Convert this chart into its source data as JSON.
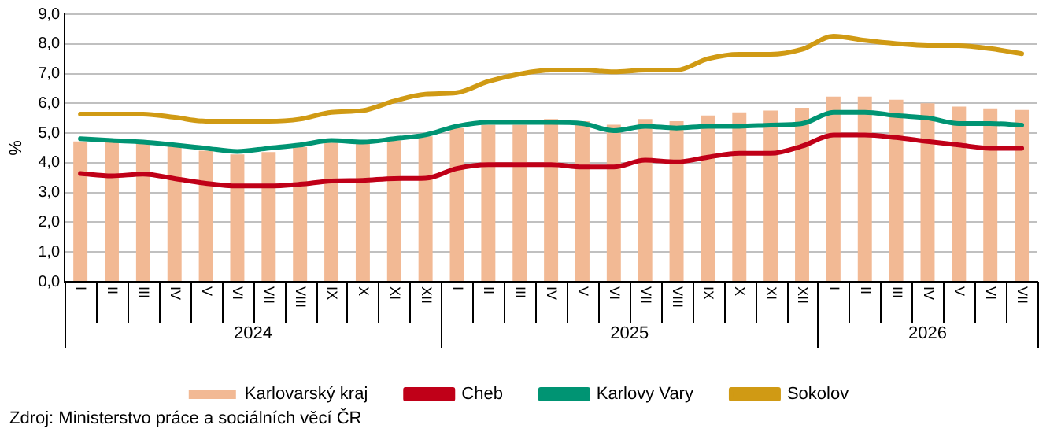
{
  "chart_data": {
    "type": "bar",
    "ylabel": "%",
    "categories": [
      "I",
      "II",
      "III",
      "IV",
      "V",
      "VI",
      "VII",
      "VIII",
      "IX",
      "X",
      "XI",
      "XII",
      "I",
      "II",
      "III",
      "IV",
      "V",
      "VI",
      "VII",
      "VIII",
      "IX",
      "X",
      "XI",
      "XII",
      "I",
      "II",
      "III",
      "IV",
      "V",
      "VI",
      "VII"
    ],
    "series": [
      {
        "name": "Karlovarský kraj",
        "color": "#f2b994",
        "values": [
          4.72,
          4.7,
          4.66,
          4.56,
          4.41,
          4.28,
          4.36,
          4.53,
          4.68,
          4.64,
          4.75,
          4.89,
          5.17,
          5.28,
          5.28,
          5.47,
          5.4,
          5.28,
          5.47,
          5.4,
          5.59,
          5.7,
          5.76,
          5.85,
          6.23,
          6.23,
          6.12,
          6.0,
          5.89,
          5.83,
          5.78
        ]
      },
      {
        "name": "Cheb",
        "type": "line",
        "color": "#c00018",
        "values": [
          3.64,
          3.56,
          3.62,
          3.47,
          3.31,
          3.22,
          3.22,
          3.28,
          3.39,
          3.41,
          3.47,
          3.48,
          3.81,
          3.94,
          3.94,
          3.94,
          3.86,
          3.86,
          4.09,
          4.03,
          4.19,
          4.32,
          4.32,
          4.56,
          4.94,
          4.94,
          4.85,
          4.72,
          4.6,
          4.49,
          4.49
        ]
      },
      {
        "name": "Karlovy Vary",
        "type": "line",
        "color": "#009473",
        "values": [
          4.81,
          4.75,
          4.7,
          4.6,
          4.49,
          4.38,
          4.49,
          4.6,
          4.75,
          4.7,
          4.81,
          4.94,
          5.23,
          5.36,
          5.36,
          5.36,
          5.32,
          5.08,
          5.23,
          5.17,
          5.23,
          5.23,
          5.27,
          5.32,
          5.7,
          5.7,
          5.59,
          5.51,
          5.32,
          5.32,
          5.27
        ]
      },
      {
        "name": "Sokolov",
        "type": "line",
        "color": "#d09a14",
        "values": [
          5.64,
          5.64,
          5.64,
          5.53,
          5.4,
          5.4,
          5.4,
          5.47,
          5.7,
          5.76,
          6.08,
          6.31,
          6.36,
          6.74,
          6.99,
          7.12,
          7.12,
          7.06,
          7.12,
          7.12,
          7.5,
          7.65,
          7.65,
          7.82,
          8.26,
          8.12,
          8.01,
          7.94,
          7.94,
          7.84,
          7.67
        ]
      }
    ],
    "ylim": [
      0,
      9
    ],
    "yticks": [
      {
        "value": 0,
        "label": "0,0"
      },
      {
        "value": 1,
        "label": "1,0"
      },
      {
        "value": 2,
        "label": "2,0"
      },
      {
        "value": 3,
        "label": "3,0"
      },
      {
        "value": 4,
        "label": "4,0"
      },
      {
        "value": 5,
        "label": "5,0"
      },
      {
        "value": 6,
        "label": "6,0"
      },
      {
        "value": 7,
        "label": "7,0"
      },
      {
        "value": 8,
        "label": "8,0"
      },
      {
        "value": 9,
        "label": "9,0"
      }
    ],
    "grid": "y",
    "legend": "bottom",
    "marker": "none",
    "line_style": "solid",
    "annotations": [
      "2024",
      "2025",
      "2026",
      "Zdroj: Ministerstvo práce a sociálních věcí ČR"
    ]
  }
}
